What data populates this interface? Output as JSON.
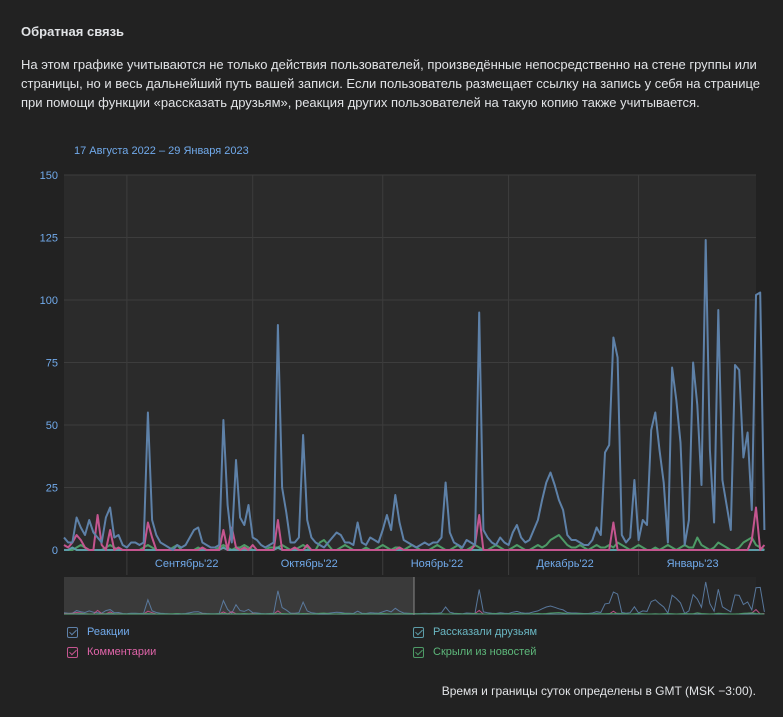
{
  "header": {
    "title": "Обратная связь",
    "description": "На этом графике учитываются не только действия пользователей, произведённые непосредственно на стене группы или страницы, но и весь дальнейший путь вашей записи. Если пользователь размещает ссылку на запись у себя на странице при помощи функции «рассказать друзьям», реакция других пользователей на такую копию также учитывается.",
    "date_range": "17 Августа 2022 – 29 Января 2023"
  },
  "legend": {
    "reactions": "Реакции",
    "comments": "Комментарии",
    "shared": "Рассказали друзьям",
    "hidden": "Скрыли из новостей"
  },
  "footer": "Время и границы суток определены в GMT (MSK −3:00).",
  "colors": {
    "reactions": "#5e81a8",
    "comments": "#c4558f",
    "shared": "#5c9ca7",
    "hidden": "#4d9a66",
    "axis_label": "#71aaeb"
  },
  "chart_data": {
    "type": "line",
    "ylim": [
      0,
      150
    ],
    "y_ticks": [
      0,
      25,
      50,
      75,
      100,
      125,
      150
    ],
    "x_start": "2022-08-17",
    "x_end": "2023-01-29",
    "x_tick_labels": [
      "Сентябрь'22",
      "Октябрь'22",
      "Ноябрь'22",
      "Декабрь'22",
      "Январь'23"
    ],
    "x_tick_dates": [
      "2022-09-01",
      "2022-10-01",
      "2022-11-01",
      "2022-12-01",
      "2023-01-01"
    ],
    "series": [
      {
        "name": "Реакции",
        "values": [
          5,
          3,
          3,
          13,
          9,
          6,
          12,
          7,
          5,
          3,
          13,
          17,
          5,
          6,
          2,
          1,
          3,
          3,
          2,
          3,
          55,
          12,
          6,
          3,
          2,
          1,
          0,
          2,
          1,
          2,
          5,
          8,
          9,
          3,
          2,
          1,
          1,
          2,
          52,
          18,
          3,
          36,
          13,
          10,
          18,
          5,
          4,
          2,
          1,
          2,
          3,
          90,
          25,
          15,
          3,
          3,
          5,
          46,
          12,
          5,
          3,
          2,
          1,
          3,
          5,
          7,
          6,
          3,
          3,
          2,
          11,
          3,
          2,
          5,
          4,
          3,
          8,
          14,
          8,
          22,
          11,
          4,
          3,
          2,
          1,
          2,
          3,
          2,
          3,
          3,
          5,
          27,
          7,
          3,
          2,
          1,
          4,
          3,
          2,
          95,
          8,
          5,
          3,
          2,
          5,
          3,
          2,
          7,
          10,
          5,
          3,
          4,
          8,
          12,
          20,
          27,
          31,
          26,
          20,
          16,
          6,
          4,
          4,
          3,
          2,
          2,
          4,
          9,
          6,
          39,
          42,
          85,
          77,
          6,
          3,
          5,
          28,
          4,
          12,
          10,
          48,
          55,
          40,
          27,
          3,
          73,
          60,
          43,
          2,
          12,
          75,
          58,
          26,
          124,
          40,
          11,
          96,
          28,
          18,
          8,
          74,
          72,
          37,
          47,
          16,
          102,
          103,
          8
        ]
      },
      {
        "name": "Комментарии",
        "values": [
          2,
          1,
          3,
          6,
          4,
          1,
          0,
          0,
          14,
          2,
          0,
          8,
          0,
          1,
          0,
          0,
          0,
          0,
          0,
          0,
          11,
          5,
          0,
          0,
          0,
          0,
          0,
          0,
          0,
          0,
          0,
          0,
          0,
          1,
          0,
          0,
          0,
          0,
          8,
          0,
          9,
          1,
          0,
          1,
          0,
          2,
          0,
          0,
          0,
          0,
          0,
          12,
          0,
          0,
          0,
          1,
          0,
          0,
          2,
          0,
          0,
          0,
          0,
          0,
          0,
          0,
          0,
          0,
          0,
          0,
          0,
          0,
          0,
          0,
          0,
          0,
          0,
          0,
          0,
          0,
          1,
          0,
          0,
          0,
          0,
          0,
          0,
          0,
          0,
          0,
          0,
          0,
          0,
          0,
          0,
          0,
          0,
          0,
          2,
          14,
          0,
          0,
          0,
          0,
          0,
          0,
          0,
          0,
          0,
          0,
          0,
          0,
          0,
          0,
          0,
          0,
          0,
          0,
          0,
          0,
          0,
          0,
          0,
          0,
          0,
          0,
          0,
          0,
          0,
          0,
          0,
          11,
          0,
          0,
          0,
          0,
          0,
          0,
          0,
          0,
          0,
          0,
          0,
          0,
          0,
          0,
          0,
          0,
          0,
          0,
          0,
          0,
          0,
          0,
          0,
          0,
          0,
          0,
          0,
          0,
          0,
          0,
          0,
          0,
          4,
          17,
          0,
          2
        ]
      },
      {
        "name": "Рассказали друзьям",
        "values": [
          0,
          0,
          1,
          0,
          0,
          0,
          0,
          0,
          0,
          0,
          0,
          0,
          0,
          0,
          0,
          0,
          0,
          0,
          0,
          0,
          0,
          0,
          0,
          0,
          0,
          0,
          0,
          0,
          0,
          0,
          0,
          0,
          0,
          0,
          0,
          0,
          0,
          0,
          1,
          0,
          0,
          0,
          0,
          0,
          0,
          0,
          0,
          0,
          0,
          0,
          0,
          1,
          0,
          0,
          0,
          0,
          0,
          0,
          0,
          0,
          0,
          0,
          0,
          0,
          0,
          0,
          0,
          0,
          0,
          0,
          0,
          0,
          0,
          0,
          0,
          0,
          0,
          0,
          0,
          0,
          0,
          0,
          0,
          0,
          0,
          0,
          0,
          0,
          0,
          0,
          0,
          0,
          0,
          0,
          0,
          0,
          0,
          0,
          0,
          0,
          0,
          0,
          0,
          0,
          0,
          0,
          0,
          0,
          0,
          0,
          0,
          0,
          0,
          0,
          0,
          0,
          0,
          0,
          0,
          0,
          0,
          0,
          0,
          0,
          0,
          0,
          0,
          0,
          0,
          0,
          0,
          0,
          0,
          0,
          0,
          0,
          0,
          0,
          0,
          0,
          0,
          0,
          0,
          0,
          0,
          0,
          0,
          0,
          0,
          0,
          0,
          0,
          0,
          0,
          0,
          0,
          0,
          0,
          0,
          0,
          0,
          0,
          0,
          0,
          0,
          0,
          0,
          0
        ]
      },
      {
        "name": "Скрыли из новостей",
        "values": [
          0,
          0,
          0,
          1,
          2,
          1,
          0,
          0,
          0,
          0,
          1,
          2,
          1,
          0,
          0,
          0,
          0,
          0,
          0,
          1,
          2,
          1,
          0,
          0,
          0,
          0,
          1,
          2,
          0,
          0,
          0,
          0,
          1,
          0,
          0,
          0,
          0,
          1,
          2,
          1,
          0,
          1,
          1,
          2,
          1,
          0,
          0,
          0,
          0,
          1,
          1,
          1,
          2,
          1,
          0,
          0,
          1,
          2,
          1,
          0,
          0,
          3,
          4,
          2,
          0,
          0,
          1,
          2,
          1,
          0,
          0,
          0,
          1,
          0,
          0,
          1,
          2,
          1,
          0,
          1,
          1,
          0,
          1,
          2,
          1,
          0,
          0,
          0,
          1,
          2,
          1,
          0,
          0,
          1,
          2,
          0,
          0,
          1,
          2,
          1,
          0,
          0,
          1,
          2,
          1,
          0,
          0,
          1,
          2,
          1,
          0,
          0,
          1,
          2,
          1,
          2,
          4,
          5,
          6,
          4,
          2,
          1,
          1,
          2,
          1,
          0,
          1,
          2,
          1,
          1,
          2,
          1,
          3,
          2,
          1,
          0,
          1,
          2,
          1,
          0,
          0,
          1,
          0,
          1,
          2,
          1,
          0,
          1,
          2,
          1,
          1,
          5,
          2,
          1,
          0,
          1,
          3,
          2,
          1,
          0,
          0,
          1,
          3,
          4,
          5,
          2,
          1,
          0
        ]
      }
    ]
  }
}
